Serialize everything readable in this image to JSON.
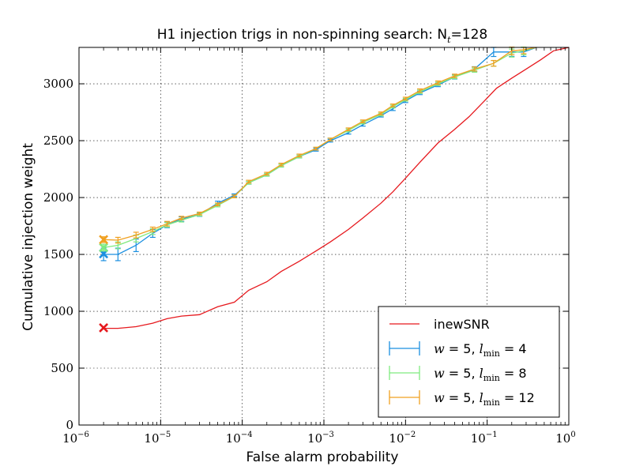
{
  "chart_data": {
    "type": "line",
    "title": "H1 injection trigs in non-spinning search: N",
    "title_math_sub": "t",
    "title_suffix": "=128",
    "xlabel": "False alarm probability",
    "ylabel": "Cumulative injection weight",
    "xscale": "log",
    "xlim": [
      1e-06,
      1
    ],
    "ylim": [
      0,
      3320
    ],
    "x_tick_base": "10",
    "x_tick_exponents": [
      "−6",
      "−5",
      "−4",
      "−3",
      "−2",
      "−1",
      "0"
    ],
    "x_tick_values": [
      1e-06,
      1e-05,
      0.0001,
      0.001,
      0.01,
      0.1,
      1
    ],
    "y_ticks": [
      0,
      500,
      1000,
      1500,
      2000,
      2500,
      3000
    ],
    "grid": true,
    "legend_position": "lower-right",
    "series": [
      {
        "name": "inewSNR",
        "label_math": "",
        "color": "#e6191e",
        "marker_x": 2e-06,
        "marker_y": 855,
        "errorbars": false,
        "x": [
          2e-06,
          3e-06,
          5e-06,
          8e-06,
          1.2e-05,
          1.8e-05,
          3e-05,
          5e-05,
          8e-05,
          0.00012,
          0.0002,
          0.0003,
          0.0005,
          0.0008,
          0.0012,
          0.002,
          0.003,
          0.005,
          0.007,
          0.01,
          0.015,
          0.025,
          0.04,
          0.06,
          0.09,
          0.13,
          0.2,
          0.3,
          0.45,
          0.65,
          0.8,
          1
        ],
        "y": [
          850,
          850,
          865,
          895,
          935,
          958,
          970,
          1040,
          1080,
          1185,
          1260,
          1350,
          1440,
          1530,
          1610,
          1720,
          1820,
          1950,
          2050,
          2170,
          2310,
          2480,
          2600,
          2710,
          2840,
          2960,
          3050,
          3130,
          3210,
          3290,
          3305,
          3320
        ],
        "err": []
      },
      {
        "name": "w = 5, l = 4",
        "label_math": "w = 5, l_min = 4",
        "color": "#1a8fe0",
        "marker_x": 2e-06,
        "marker_y": 1505,
        "errorbars": true,
        "x": [
          2e-06,
          3e-06,
          5e-06,
          8e-06,
          1.2e-05,
          1.8e-05,
          3e-05,
          5e-05,
          8e-05,
          0.00012,
          0.0002,
          0.0003,
          0.0005,
          0.0008,
          0.0012,
          0.002,
          0.003,
          0.005,
          0.007,
          0.01,
          0.015,
          0.025,
          0.04,
          0.07,
          0.12,
          0.2,
          0.28,
          0.4
        ],
        "y": [
          1500,
          1500,
          1580,
          1685,
          1760,
          1810,
          1850,
          1950,
          2020,
          2130,
          2200,
          2280,
          2360,
          2420,
          2500,
          2570,
          2640,
          2720,
          2780,
          2850,
          2920,
          2990,
          3060,
          3130,
          3280,
          3280,
          3280,
          3320
        ],
        "err": [
          55,
          55,
          55,
          35,
          25,
          20,
          15,
          18,
          12,
          12,
          12,
          12,
          12,
          12,
          12,
          12,
          12,
          12,
          15,
          15,
          15,
          15,
          18,
          20,
          40,
          40,
          40,
          0
        ]
      },
      {
        "name": "w = 5, l = 8",
        "label_math": "w = 5, l_min = 8",
        "color": "#7fea7f",
        "marker_x": 2e-06,
        "marker_y": 1560,
        "errorbars": true,
        "x": [
          2e-06,
          3e-06,
          5e-06,
          8e-06,
          1.2e-05,
          1.8e-05,
          3e-05,
          5e-05,
          8e-05,
          0.00012,
          0.0002,
          0.0003,
          0.0005,
          0.0008,
          0.0012,
          0.002,
          0.003,
          0.005,
          0.007,
          0.01,
          0.015,
          0.025,
          0.04,
          0.07,
          0.12,
          0.2,
          0.28,
          0.4
        ],
        "y": [
          1560,
          1580,
          1640,
          1700,
          1760,
          1800,
          1850,
          1930,
          2010,
          2130,
          2200,
          2280,
          2360,
          2430,
          2510,
          2590,
          2660,
          2730,
          2800,
          2860,
          2930,
          3000,
          3060,
          3120,
          3180,
          3270,
          3290,
          3320
        ],
        "err": [
          30,
          30,
          30,
          25,
          20,
          15,
          12,
          12,
          12,
          12,
          12,
          12,
          12,
          12,
          12,
          12,
          12,
          12,
          12,
          12,
          15,
          15,
          15,
          18,
          25,
          35,
          35,
          0
        ]
      },
      {
        "name": "w = 5, l = 12",
        "label_math": "w = 5, l_min = 12",
        "color": "#f0a020",
        "marker_x": 2e-06,
        "marker_y": 1630,
        "errorbars": true,
        "x": [
          2e-06,
          3e-06,
          5e-06,
          8e-06,
          1.2e-05,
          1.8e-05,
          3e-05,
          5e-05,
          8e-05,
          0.00012,
          0.0002,
          0.0003,
          0.0005,
          0.0008,
          0.0012,
          0.002,
          0.003,
          0.005,
          0.007,
          0.01,
          0.015,
          0.025,
          0.04,
          0.07,
          0.12,
          0.2,
          0.28,
          0.4
        ],
        "y": [
          1630,
          1625,
          1670,
          1720,
          1770,
          1820,
          1860,
          1940,
          2010,
          2140,
          2210,
          2290,
          2370,
          2430,
          2510,
          2600,
          2670,
          2740,
          2810,
          2870,
          2940,
          3010,
          3070,
          3130,
          3180,
          3290,
          3300,
          3320
        ],
        "err": [
          25,
          25,
          25,
          20,
          20,
          15,
          12,
          12,
          12,
          12,
          12,
          12,
          12,
          12,
          12,
          12,
          12,
          12,
          12,
          12,
          15,
          15,
          15,
          18,
          25,
          35,
          35,
          0
        ]
      }
    ]
  }
}
